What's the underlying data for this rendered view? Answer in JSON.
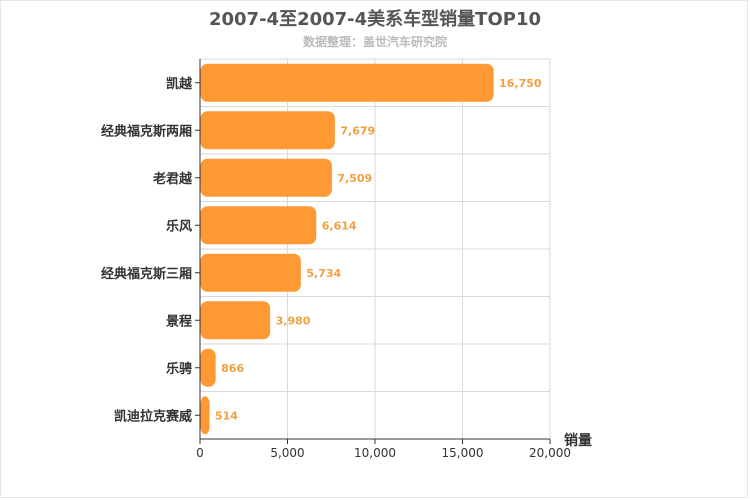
{
  "chart_data": {
    "type": "bar",
    "orientation": "horizontal",
    "title": "2007-4至2007-4美系车型销量TOP10",
    "subtitle": "数据整理：盖世汽车研究院",
    "categories": [
      "凯越",
      "经典福克斯两厢",
      "老君越",
      "乐风",
      "经典福克斯三厢",
      "景程",
      "乐骋",
      "凯迪拉克赛威"
    ],
    "values": [
      16750,
      7679,
      7509,
      6614,
      5734,
      3980,
      866,
      514
    ],
    "value_labels": [
      "16,750",
      "7,679",
      "7,509",
      "6,614",
      "5,734",
      "3,980",
      "866",
      "514"
    ],
    "xlabel": "销量",
    "ylabel": "",
    "xlim": [
      0,
      20000
    ],
    "ticks": [
      0,
      5000,
      10000,
      15000,
      20000
    ],
    "tick_labels": [
      "0",
      "5,000",
      "10,000",
      "15,000",
      "20,000"
    ],
    "grid": true,
    "bar_color": "#ff9933",
    "label_color": "#f0a040"
  }
}
